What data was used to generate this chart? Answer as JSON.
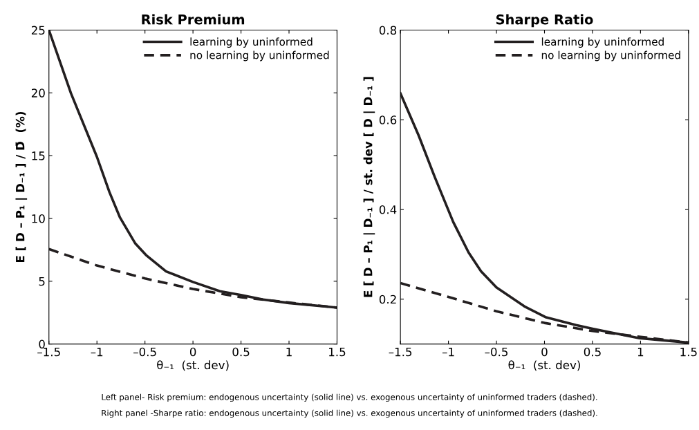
{
  "chart_data": [
    {
      "type": "line",
      "title": "Risk Premium",
      "xlabel": "θ₋₁  (st. dev)",
      "ylabel": "E [ D – P₁ | D₋₁ ] / D̄  (%)",
      "xlim": [
        -1.5,
        1.5
      ],
      "ylim": [
        0,
        25
      ],
      "xticks": [
        {
          "value": -1.5,
          "label": "–1.5"
        },
        {
          "value": -1,
          "label": "–1"
        },
        {
          "value": -0.5,
          "label": "–0.5"
        },
        0,
        0.5,
        1,
        1.5
      ],
      "yticks": [
        0,
        5,
        10,
        15,
        20,
        25
      ],
      "legend": "top right",
      "grid": false,
      "series": [
        {
          "name": "learning by uninformed",
          "color": "#231f20",
          "line_style": "solid",
          "x": [
            -1.5,
            -1.27,
            -1.0,
            -0.87,
            -0.76,
            -0.6,
            -0.49,
            -0.28,
            0,
            0.28,
            0.5,
            0.73,
            1.0,
            1.5
          ],
          "values": [
            25,
            19.96,
            14.9,
            12.1,
            10.07,
            8.0,
            7.09,
            5.78,
            4.94,
            4.2,
            3.9,
            3.54,
            3.26,
            2.9
          ]
        },
        {
          "name": "no learning by uninformed",
          "color": "#231f20",
          "line_style": "dashed",
          "x": [
            -1.5,
            -1,
            -0.5,
            0,
            0.5,
            1,
            1.5
          ],
          "values": [
            7.56,
            6.25,
            5.22,
            4.38,
            3.73,
            3.3,
            2.9
          ]
        }
      ],
      "annotations": [
        "Left panel- Risk premium: endogenous uncertainty (solid line) vs. exogenous uncertainty of uninformed traders (dashed)."
      ]
    },
    {
      "type": "line",
      "title": "Sharpe Ratio",
      "xlabel": "θ₋₁  (st. dev)",
      "ylabel": "E [ D – P₁ | D₋₁ ] / st. dev [ D | D₋₁ ]",
      "xlim": [
        -1.5,
        1.5
      ],
      "ylim": [
        0.1,
        0.8
      ],
      "xticks": [
        {
          "value": -1.5,
          "label": "–1.5"
        },
        {
          "value": -1,
          "label": "–1"
        },
        {
          "value": -0.5,
          "label": "–0.5"
        },
        0,
        0.5,
        1,
        1.5
      ],
      "yticks": [
        0.2,
        0.4,
        0.6,
        0.8
      ],
      "legend": "top right",
      "grid": false,
      "series": [
        {
          "name": "learning by uninformed",
          "color": "#231f20",
          "line_style": "solid",
          "x": [
            -1.5,
            -1.31,
            -1.14,
            -0.95,
            -0.79,
            -0.66,
            -0.5,
            -0.21,
            0.01,
            0.33,
            0.5,
            0.73,
            0.99,
            1.5
          ],
          "values": [
            0.659,
            0.565,
            0.471,
            0.372,
            0.304,
            0.262,
            0.226,
            0.184,
            0.16,
            0.142,
            0.134,
            0.124,
            0.113,
            0.103
          ]
        },
        {
          "name": "no learning by uninformed",
          "color": "#231f20",
          "line_style": "dashed",
          "x": [
            -1.5,
            -1,
            -0.5,
            0,
            0.5,
            1,
            1.5
          ],
          "values": [
            0.236,
            0.205,
            0.173,
            0.147,
            0.129,
            0.116,
            0.103
          ]
        }
      ],
      "annotations": [
        "Right panel -Sharpe ratio: endogenous uncertainty (solid line) vs. exogenous uncertainty of uninformed traders (dashed)."
      ]
    }
  ]
}
